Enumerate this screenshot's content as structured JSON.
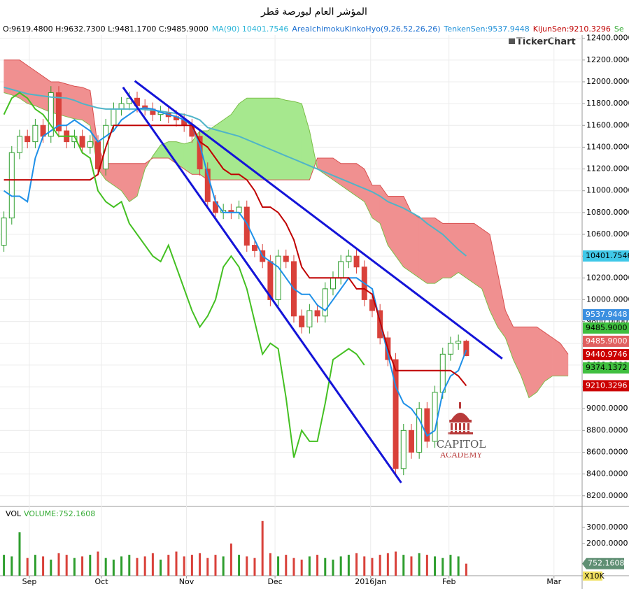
{
  "chart_data": {
    "type": "candlestick",
    "title": "المؤشر العام لبورصة قطر",
    "header": [
      {
        "text": "O:9619.4800 H:9632.7300 L:9481.1700 C:9485.9000",
        "color": "#000000"
      },
      {
        "text": "MA(90) 10401.7546",
        "color": "#2cb5d8"
      },
      {
        "text": "AreaIchimokuKinkoHyo(9,26,52,26,26)",
        "color": "#1c6fd0"
      },
      {
        "text": "TenkenSen:9537.9448",
        "color": "#1e90d8"
      },
      {
        "text": "KijunSen:9210.3296",
        "color": "#c00000"
      },
      {
        "text": "Se",
        "color": "#33aa33"
      }
    ],
    "watermark": "TickerChart",
    "logo": [
      "CAPITOL",
      "ACADEMY"
    ],
    "x": [
      0,
      1,
      2,
      3,
      4,
      5,
      6,
      7,
      8,
      9,
      10,
      11,
      12,
      13,
      14,
      15,
      16,
      17,
      18,
      19,
      20,
      21,
      22,
      23,
      24,
      25,
      26,
      27,
      28,
      29,
      30,
      31,
      32,
      33,
      34,
      35,
      36,
      37,
      38,
      39,
      40,
      41,
      42,
      43,
      44,
      45,
      46,
      47,
      48,
      49,
      50,
      51,
      52,
      53,
      54,
      55,
      56,
      57,
      58,
      59
    ],
    "open": [
      10500,
      10750,
      11350,
      11500,
      11450,
      11600,
      11500,
      11900,
      11550,
      11450,
      11500,
      11400,
      11450,
      11200,
      11600,
      11750,
      11800,
      11850,
      11780,
      11750,
      11700,
      11720,
      11680,
      11650,
      11600,
      11500,
      11200,
      10900,
      10800,
      10820,
      10800,
      10850,
      10500,
      10450,
      10350,
      10000,
      10400,
      10350,
      9850,
      9750,
      9900,
      9850,
      10100,
      10200,
      10350,
      10400,
      10300,
      10000,
      9900,
      9650,
      9450,
      8450,
      8800,
      8600,
      9000,
      8700,
      9150,
      9500,
      9600,
      9619.48
    ],
    "high": [
      10810,
      11410,
      11560,
      11560,
      11660,
      11660,
      11960,
      11960,
      11610,
      11560,
      11560,
      11510,
      11510,
      11660,
      11810,
      11860,
      11910,
      11910,
      11840,
      11810,
      11780,
      11780,
      11740,
      11710,
      11660,
      11560,
      11260,
      10960,
      10880,
      10880,
      10910,
      10910,
      10560,
      10510,
      10410,
      10460,
      10460,
      10410,
      9910,
      9960,
      9960,
      10160,
      10260,
      10410,
      10460,
      10460,
      10360,
      10060,
      9960,
      9710,
      9510,
      8860,
      8860,
      9060,
      9060,
      9210,
      9560,
      9660,
      9679.48,
      9632.73
    ],
    "low": [
      10440,
      10690,
      11290,
      11390,
      11390,
      11440,
      11440,
      11490,
      11390,
      11390,
      11340,
      11340,
      11140,
      11140,
      11540,
      11690,
      11740,
      11720,
      11690,
      11640,
      11640,
      11620,
      11590,
      11540,
      11440,
      11140,
      10840,
      10740,
      10740,
      10740,
      10740,
      10440,
      10390,
      10290,
      9940,
      9940,
      10290,
      9790,
      9690,
      9690,
      9790,
      9790,
      10040,
      10140,
      10290,
      10240,
      9940,
      9840,
      9590,
      9390,
      8390,
      8390,
      8540,
      8540,
      8640,
      8640,
      9090,
      9440,
      9540,
      9481.17
    ],
    "close": [
      10750,
      11350,
      11500,
      11450,
      11600,
      11500,
      11900,
      11550,
      11450,
      11500,
      11400,
      11450,
      11200,
      11600,
      11750,
      11800,
      11850,
      11780,
      11750,
      11700,
      11720,
      11680,
      11650,
      11600,
      11500,
      11200,
      10900,
      10800,
      10820,
      10800,
      10850,
      10500,
      10450,
      10350,
      10000,
      10400,
      10350,
      9850,
      9750,
      9900,
      9850,
      10100,
      10200,
      10350,
      10400,
      10300,
      10000,
      9900,
      9650,
      9450,
      8450,
      8800,
      8600,
      9000,
      8700,
      9150,
      9500,
      9600,
      9619.48,
      9485.9
    ],
    "up_color": "#2e9e2e",
    "down_color": "#d9413a",
    "series": [
      {
        "color": "#4fb4c8",
        "values": [
          11950,
          11930,
          11910,
          11890,
          11880,
          11870,
          11860,
          11855,
          11850,
          11830,
          11800,
          11780,
          11760,
          11750,
          11750,
          11750,
          11750,
          11750,
          11745,
          11740,
          11730,
          11720,
          11710,
          11700,
          11680,
          11650,
          11580,
          11560,
          11540,
          11520,
          11500,
          11470,
          11440,
          11410,
          11380,
          11350,
          11320,
          11290,
          11260,
          11230,
          11200,
          11170,
          11140,
          11110,
          11080,
          11050,
          11020,
          10990,
          10950,
          10900,
          10870,
          10840,
          10800,
          10760,
          10700,
          10650,
          10600,
          10530,
          10460,
          10401.7546
        ]
      },
      {
        "color": "#1e90e8",
        "values": [
          11000,
          10950,
          10950,
          10900,
          11300,
          11500,
          11550,
          11600,
          11600,
          11650,
          11600,
          11550,
          11450,
          11500,
          11550,
          11650,
          11700,
          11750,
          11760,
          11750,
          11720,
          11700,
          11680,
          11650,
          11600,
          11420,
          11150,
          10900,
          10800,
          10800,
          10800,
          10700,
          10550,
          10400,
          10350,
          10300,
          10200,
          10100,
          10050,
          10050,
          9950,
          9900,
          10000,
          10100,
          10200,
          10200,
          10150,
          10100,
          9800,
          9500,
          9200,
          9050,
          9000,
          8900,
          8750,
          8800,
          9150,
          9300,
          9350,
          9537.9448
        ]
      },
      {
        "color": "#c00000",
        "values": [
          11100,
          11100,
          11100,
          11100,
          11100,
          11100,
          11100,
          11100,
          11100,
          11100,
          11100,
          11100,
          11150,
          11400,
          11600,
          11600,
          11600,
          11600,
          11600,
          11600,
          11600,
          11600,
          11600,
          11600,
          11600,
          11450,
          11400,
          11300,
          11200,
          11150,
          11150,
          11100,
          11000,
          10850,
          10850,
          10800,
          10700,
          10550,
          10300,
          10200,
          10200,
          10200,
          10200,
          10200,
          10200,
          10100,
          10100,
          10050,
          9800,
          9550,
          9350,
          9350,
          9350,
          9350,
          9350,
          9350,
          9350,
          9350,
          9300,
          9210.3296
        ]
      },
      {
        "color": "#44c022",
        "values": [
          11700,
          11850,
          11900,
          11850,
          11750,
          11700,
          11600,
          11500,
          11500,
          11500,
          11350,
          11300,
          11000,
          10900,
          10850,
          10900,
          10700,
          10600,
          10500,
          10400,
          10350,
          10500,
          10300,
          10100,
          9900,
          9750,
          9850,
          10000,
          10300,
          10400,
          10300,
          10100,
          9800,
          9500,
          9600,
          9550,
          9100,
          8550,
          8800,
          8700,
          8700,
          9050,
          9450,
          9500,
          9550,
          9500,
          9400,
          null,
          null,
          null,
          null,
          null,
          null,
          null,
          null,
          null,
          null,
          null,
          null,
          null
        ]
      }
    ],
    "cloud": {
      "x": [
        0,
        1,
        2,
        3,
        4,
        5,
        6,
        7,
        8,
        9,
        10,
        11,
        12,
        13,
        14,
        15,
        16,
        17,
        18,
        19,
        20,
        21,
        22,
        23,
        24,
        25,
        26,
        27,
        28,
        29,
        30,
        31,
        32,
        33,
        34,
        35,
        36,
        37,
        38,
        39,
        40,
        41,
        42,
        43,
        44,
        45,
        46,
        47,
        48,
        49,
        50,
        51,
        52,
        53,
        54,
        55,
        56,
        57,
        58,
        59,
        60,
        61,
        62,
        63,
        64,
        65,
        66,
        67,
        68,
        69,
        70,
        71,
        72
      ],
      "span_a": [
        11900,
        11880,
        11850,
        11800,
        11780,
        11750,
        11720,
        11700,
        11680,
        11660,
        11650,
        11600,
        11200,
        11100,
        11050,
        11000,
        10900,
        10950,
        11200,
        11320,
        11420,
        11450,
        11450,
        11430,
        11450,
        11550,
        11550,
        11600,
        11650,
        11700,
        11800,
        11850,
        11850,
        11850,
        11850,
        11850,
        11830,
        11820,
        11800,
        11550,
        11200,
        11150,
        11100,
        11050,
        11000,
        10950,
        10900,
        10750,
        10700,
        10500,
        10400,
        10300,
        10250,
        10200,
        10150,
        10150,
        10200,
        10200,
        10250,
        10200,
        10150,
        10100,
        9900,
        9750,
        9650,
        9450,
        9300,
        9100,
        9150,
        9250,
        9300,
        9300,
        9300
      ],
      "span_b": [
        12200,
        12200,
        12200,
        12150,
        12100,
        12050,
        12000,
        12000,
        11980,
        11960,
        11950,
        11920,
        11400,
        11250,
        11250,
        11250,
        11250,
        11250,
        11250,
        11300,
        11300,
        11300,
        11250,
        11200,
        11150,
        11150,
        11100,
        11100,
        11100,
        11100,
        11100,
        11100,
        11100,
        11100,
        11100,
        11100,
        11100,
        11100,
        11100,
        11100,
        11300,
        11300,
        11300,
        11250,
        11250,
        11250,
        11200,
        11050,
        11050,
        10950,
        10950,
        10950,
        10800,
        10750,
        10750,
        10750,
        10700,
        10700,
        10700,
        10700,
        10700,
        10650,
        10600,
        10250,
        9900,
        9750,
        9750,
        9750,
        9750,
        9700,
        9650,
        9600,
        9500
      ],
      "bull_color": "#a6e88e",
      "bear_color": "#f09090",
      "a_color": "#7cbf4a",
      "b_color": "#d85050"
    },
    "trend_lines": [
      {
        "x": [
          15.2,
          50.7
        ],
        "y": [
          11950,
          8320
        ]
      },
      {
        "x": [
          16.7,
          63.6
        ],
        "y": [
          12008,
          9459
        ]
      }
    ],
    "trend_color": "#1414d8",
    "xlim": [
      -0.5,
      73.79
    ],
    "xticks": [
      {
        "value": 3.25,
        "label": "Sep"
      },
      {
        "value": 12.45,
        "label": "Oct"
      },
      {
        "value": 23.3,
        "label": "Nov"
      },
      {
        "value": 34.6,
        "label": "Dec"
      },
      {
        "value": 46.8,
        "label": "2016Jan"
      },
      {
        "value": 56.8,
        "label": "Feb"
      },
      {
        "value": 70.2,
        "label": "Mar"
      }
    ],
    "ylim": [
      8115,
      12430
    ],
    "yticks": [
      {
        "value": 12400,
        "label": "12400.0000"
      },
      {
        "value": 12200,
        "label": "12200.0000"
      },
      {
        "value": 12000,
        "label": "12000.0000"
      },
      {
        "value": 11800,
        "label": "11800.0000"
      },
      {
        "value": 11600,
        "label": "11600.0000"
      },
      {
        "value": 11400,
        "label": "11400.0000"
      },
      {
        "value": 11200,
        "label": "11200.0000"
      },
      {
        "value": 11000,
        "label": "11000.0000"
      },
      {
        "value": 10800,
        "label": "10800.0000"
      },
      {
        "value": 10600,
        "label": "10600.0000"
      },
      {
        "value": 10400,
        "label": "10400.0000"
      },
      {
        "value": 10200,
        "label": "10200.0000"
      },
      {
        "value": 10000,
        "label": "10000.0000"
      },
      {
        "value": 9800,
        "label": "9800.0000"
      },
      {
        "value": 9600,
        "label": "9600.0000"
      },
      {
        "value": 9400,
        "label": "9400.0000"
      },
      {
        "value": 9200,
        "label": "9200.0000"
      },
      {
        "value": 9000,
        "label": "9000.0000"
      },
      {
        "value": 8800,
        "label": "8800.0000"
      },
      {
        "value": 8600,
        "label": "8600.0000"
      },
      {
        "value": 8400,
        "label": "8400.0000"
      },
      {
        "value": 8200,
        "label": "8200.0000"
      }
    ],
    "grid": true,
    "price_labels": [
      {
        "value": 10401.7546,
        "label": "10401.7546",
        "color": "#40c8e8",
        "text_color": "#000000"
      },
      {
        "value": 9537.9448,
        "label": "9537.9448",
        "color": "#3b8fe0",
        "text_color": "#ffffff"
      },
      {
        "value": 9485.9,
        "label": "9485.9000",
        "color": "#3fbf3f",
        "text_color": "#000000"
      },
      {
        "value": 9485.9,
        "label": "9485.9000",
        "color": "#e06060",
        "text_color": "#ffffff"
      },
      {
        "value": 9440.9746,
        "label": "9440.9746",
        "color": "#cc0000",
        "text_color": "#ffffff"
      },
      {
        "value": 9374.1372,
        "label": "9374.1372",
        "color": "#3fbf3f",
        "text_color": "#000000"
      },
      {
        "value": 9210.3296,
        "label": "9210.3296",
        "color": "#cc0000",
        "text_color": "#ffffff"
      }
    ],
    "volume": {
      "title": "VOL",
      "label": "VOLUME:752.1608",
      "label_color": "#33aa33",
      "values": [
        1300,
        1200,
        2700,
        1100,
        1300,
        1200,
        1000,
        1400,
        1300,
        1100,
        1200,
        1300,
        1500,
        1100,
        1000,
        1200,
        1300,
        1100,
        1200,
        1400,
        1000,
        1300,
        1500,
        1200,
        1300,
        1400,
        1100,
        1300,
        1200,
        2000,
        1300,
        1200,
        1100,
        3400,
        1400,
        1200,
        1300,
        1100,
        1000,
        1200,
        1300,
        1100,
        1000,
        1200,
        1300,
        1400,
        1200,
        1100,
        1300,
        1400,
        1500,
        1300,
        1200,
        1400,
        1300,
        1200,
        1100,
        1300,
        1200,
        752.1608
      ],
      "ylim": [
        0,
        4200
      ],
      "yticks": [
        {
          "value": 3000,
          "label": "3000.0000"
        },
        {
          "value": 2000,
          "label": "2000.0000"
        }
      ],
      "last": {
        "value": 752.1608,
        "label": "752.1608"
      },
      "scale_label": "X10K"
    }
  }
}
